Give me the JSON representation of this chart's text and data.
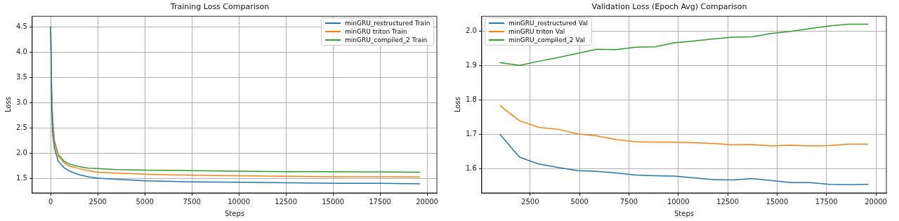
{
  "chart_data": [
    {
      "type": "line",
      "title": "Training Loss Comparison",
      "xlabel": "Steps",
      "ylabel": "Loss",
      "grid": true,
      "legend": "top right",
      "xlim": [
        -980,
        20520
      ],
      "ylim": [
        1.22,
        4.71
      ],
      "xticks": [
        0,
        2500,
        5000,
        7500,
        10000,
        12500,
        15000,
        17500,
        20000
      ],
      "yticks": [
        1.5,
        {
          "value": 2,
          "label": "2.0"
        },
        2.5,
        {
          "value": 3,
          "label": "3.0"
        },
        3.5,
        {
          "value": 4,
          "label": "4.0"
        },
        4.5
      ],
      "series": [
        {
          "name": "minGRU_restructured Train",
          "color": "#1f77b4",
          "x": [
            0,
            50,
            100,
            200,
            400,
            700,
            1000,
            1500,
            2000,
            2500,
            3500,
            5000,
            7500,
            10000,
            12500,
            15000,
            17500,
            19600
          ],
          "values": [
            4.5,
            3.0,
            2.4,
            2.1,
            1.85,
            1.72,
            1.65,
            1.58,
            1.54,
            1.51,
            1.49,
            1.46,
            1.44,
            1.43,
            1.42,
            1.41,
            1.41,
            1.4
          ]
        },
        {
          "name": "minGRU triton Train",
          "color": "#ff7f0e",
          "x": [
            0,
            50,
            100,
            200,
            400,
            700,
            1000,
            1500,
            2000,
            2500,
            3500,
            5000,
            7500,
            10000,
            12500,
            15000,
            17500,
            19600
          ],
          "values": [
            4.5,
            3.2,
            2.6,
            2.2,
            1.95,
            1.82,
            1.75,
            1.7,
            1.66,
            1.63,
            1.61,
            1.59,
            1.57,
            1.56,
            1.55,
            1.54,
            1.54,
            1.535
          ]
        },
        {
          "name": "minGRU_compiled_2 Train",
          "color": "#2ca02c",
          "x": [
            0,
            50,
            100,
            200,
            400,
            700,
            1000,
            1500,
            2000,
            2500,
            3500,
            5000,
            7500,
            10000,
            12500,
            15000,
            17500,
            19600
          ],
          "values": [
            4.5,
            3.3,
            2.7,
            2.25,
            1.98,
            1.85,
            1.79,
            1.74,
            1.71,
            1.7,
            1.68,
            1.67,
            1.66,
            1.65,
            1.64,
            1.64,
            1.635,
            1.63
          ]
        }
      ]
    },
    {
      "type": "line",
      "title": "Validation Loss (Epoch Avg) Comparison",
      "xlabel": "Steps",
      "ylabel": "Loss",
      "grid": true,
      "legend": "top left",
      "xlim": [
        49,
        20531
      ],
      "ylim": [
        1.529,
        2.043
      ],
      "xticks": [
        2500,
        5000,
        7500,
        10000,
        12500,
        15000,
        17500,
        20000
      ],
      "yticks": [
        1.6,
        1.7,
        1.8,
        1.9,
        {
          "value": 2,
          "label": "2.0"
        }
      ],
      "x": [
        980,
        1960,
        2940,
        3920,
        4900,
        5880,
        6860,
        7840,
        8820,
        9800,
        10780,
        11760,
        12740,
        13720,
        14700,
        15680,
        16660,
        17640,
        18620,
        19600
      ],
      "series": [
        {
          "name": "minGRU_restructured Val",
          "color": "#1f77b4",
          "values": [
            1.699,
            1.633,
            1.613,
            1.603,
            1.594,
            1.592,
            1.587,
            1.581,
            1.579,
            1.578,
            1.573,
            1.568,
            1.567,
            1.571,
            1.565,
            1.559,
            1.559,
            1.554,
            1.553,
            1.554
          ]
        },
        {
          "name": "minGRU triton Val",
          "color": "#ff7f0e",
          "values": [
            1.783,
            1.739,
            1.72,
            1.714,
            1.701,
            1.695,
            1.684,
            1.678,
            1.677,
            1.677,
            1.675,
            1.673,
            1.669,
            1.67,
            1.666,
            1.668,
            1.666,
            1.667,
            1.671,
            1.671
          ]
        },
        {
          "name": "minGRU_compiled_2 Val",
          "color": "#2ca02c",
          "values": [
            1.908,
            1.9,
            1.912,
            1.923,
            1.935,
            1.947,
            1.946,
            1.953,
            1.954,
            1.966,
            1.971,
            1.977,
            1.982,
            1.983,
            1.993,
            1.999,
            2.007,
            2.015,
            2.02,
            2.02
          ]
        }
      ]
    }
  ]
}
